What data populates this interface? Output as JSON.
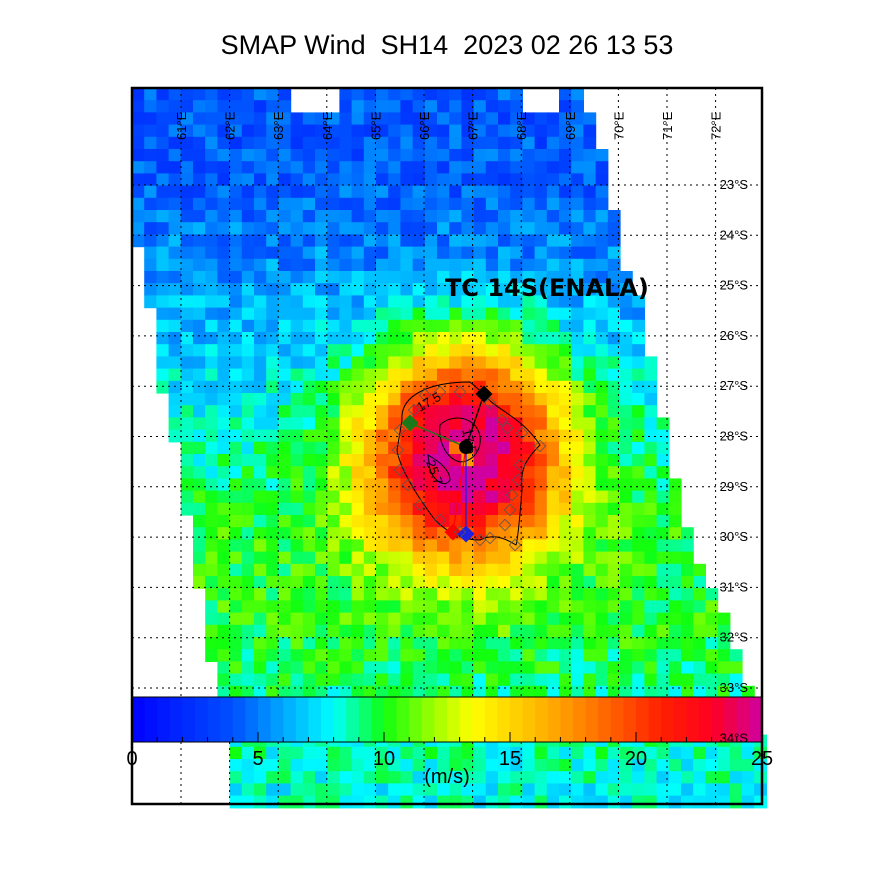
{
  "title": "SMAP Wind  SH14  2023 02 26 13 53",
  "storm_label": "TC 14S(ENALA)",
  "map": {
    "lon_labels": [
      "61°E",
      "62°E",
      "63°E",
      "64°E",
      "65°E",
      "66°E",
      "67°E",
      "68°E",
      "69°E",
      "70°E",
      "71°E",
      "72°E"
    ],
    "lat_labels": [
      "23°S",
      "24°S",
      "25°S",
      "26°S",
      "27°S",
      "28°S",
      "29°S",
      "30°S",
      "31°S",
      "32°S",
      "33°S",
      "34°S"
    ],
    "contour_labels": [
      "17.5",
      "17.5",
      "25.7"
    ],
    "quadrant_marker_colors": {
      "NE": "#000000",
      "NW": "#1a7a1a",
      "SW": "#ff0000",
      "SE": "#2020e0"
    }
  },
  "colorbar": {
    "ticks": [
      "0",
      "5",
      "10",
      "15",
      "20",
      "25"
    ],
    "range": [
      0,
      25
    ],
    "units": "(m/s)",
    "stops": [
      [
        0,
        "#0000ff"
      ],
      [
        4,
        "#0050ff"
      ],
      [
        8,
        "#00ffff"
      ],
      [
        10,
        "#10ff10"
      ],
      [
        12,
        "#a0ff00"
      ],
      [
        13.5,
        "#ffff00"
      ],
      [
        17,
        "#ffa000"
      ],
      [
        21,
        "#ff2000"
      ],
      [
        23,
        "#ff0020"
      ],
      [
        25,
        "#d000a0"
      ]
    ]
  }
}
